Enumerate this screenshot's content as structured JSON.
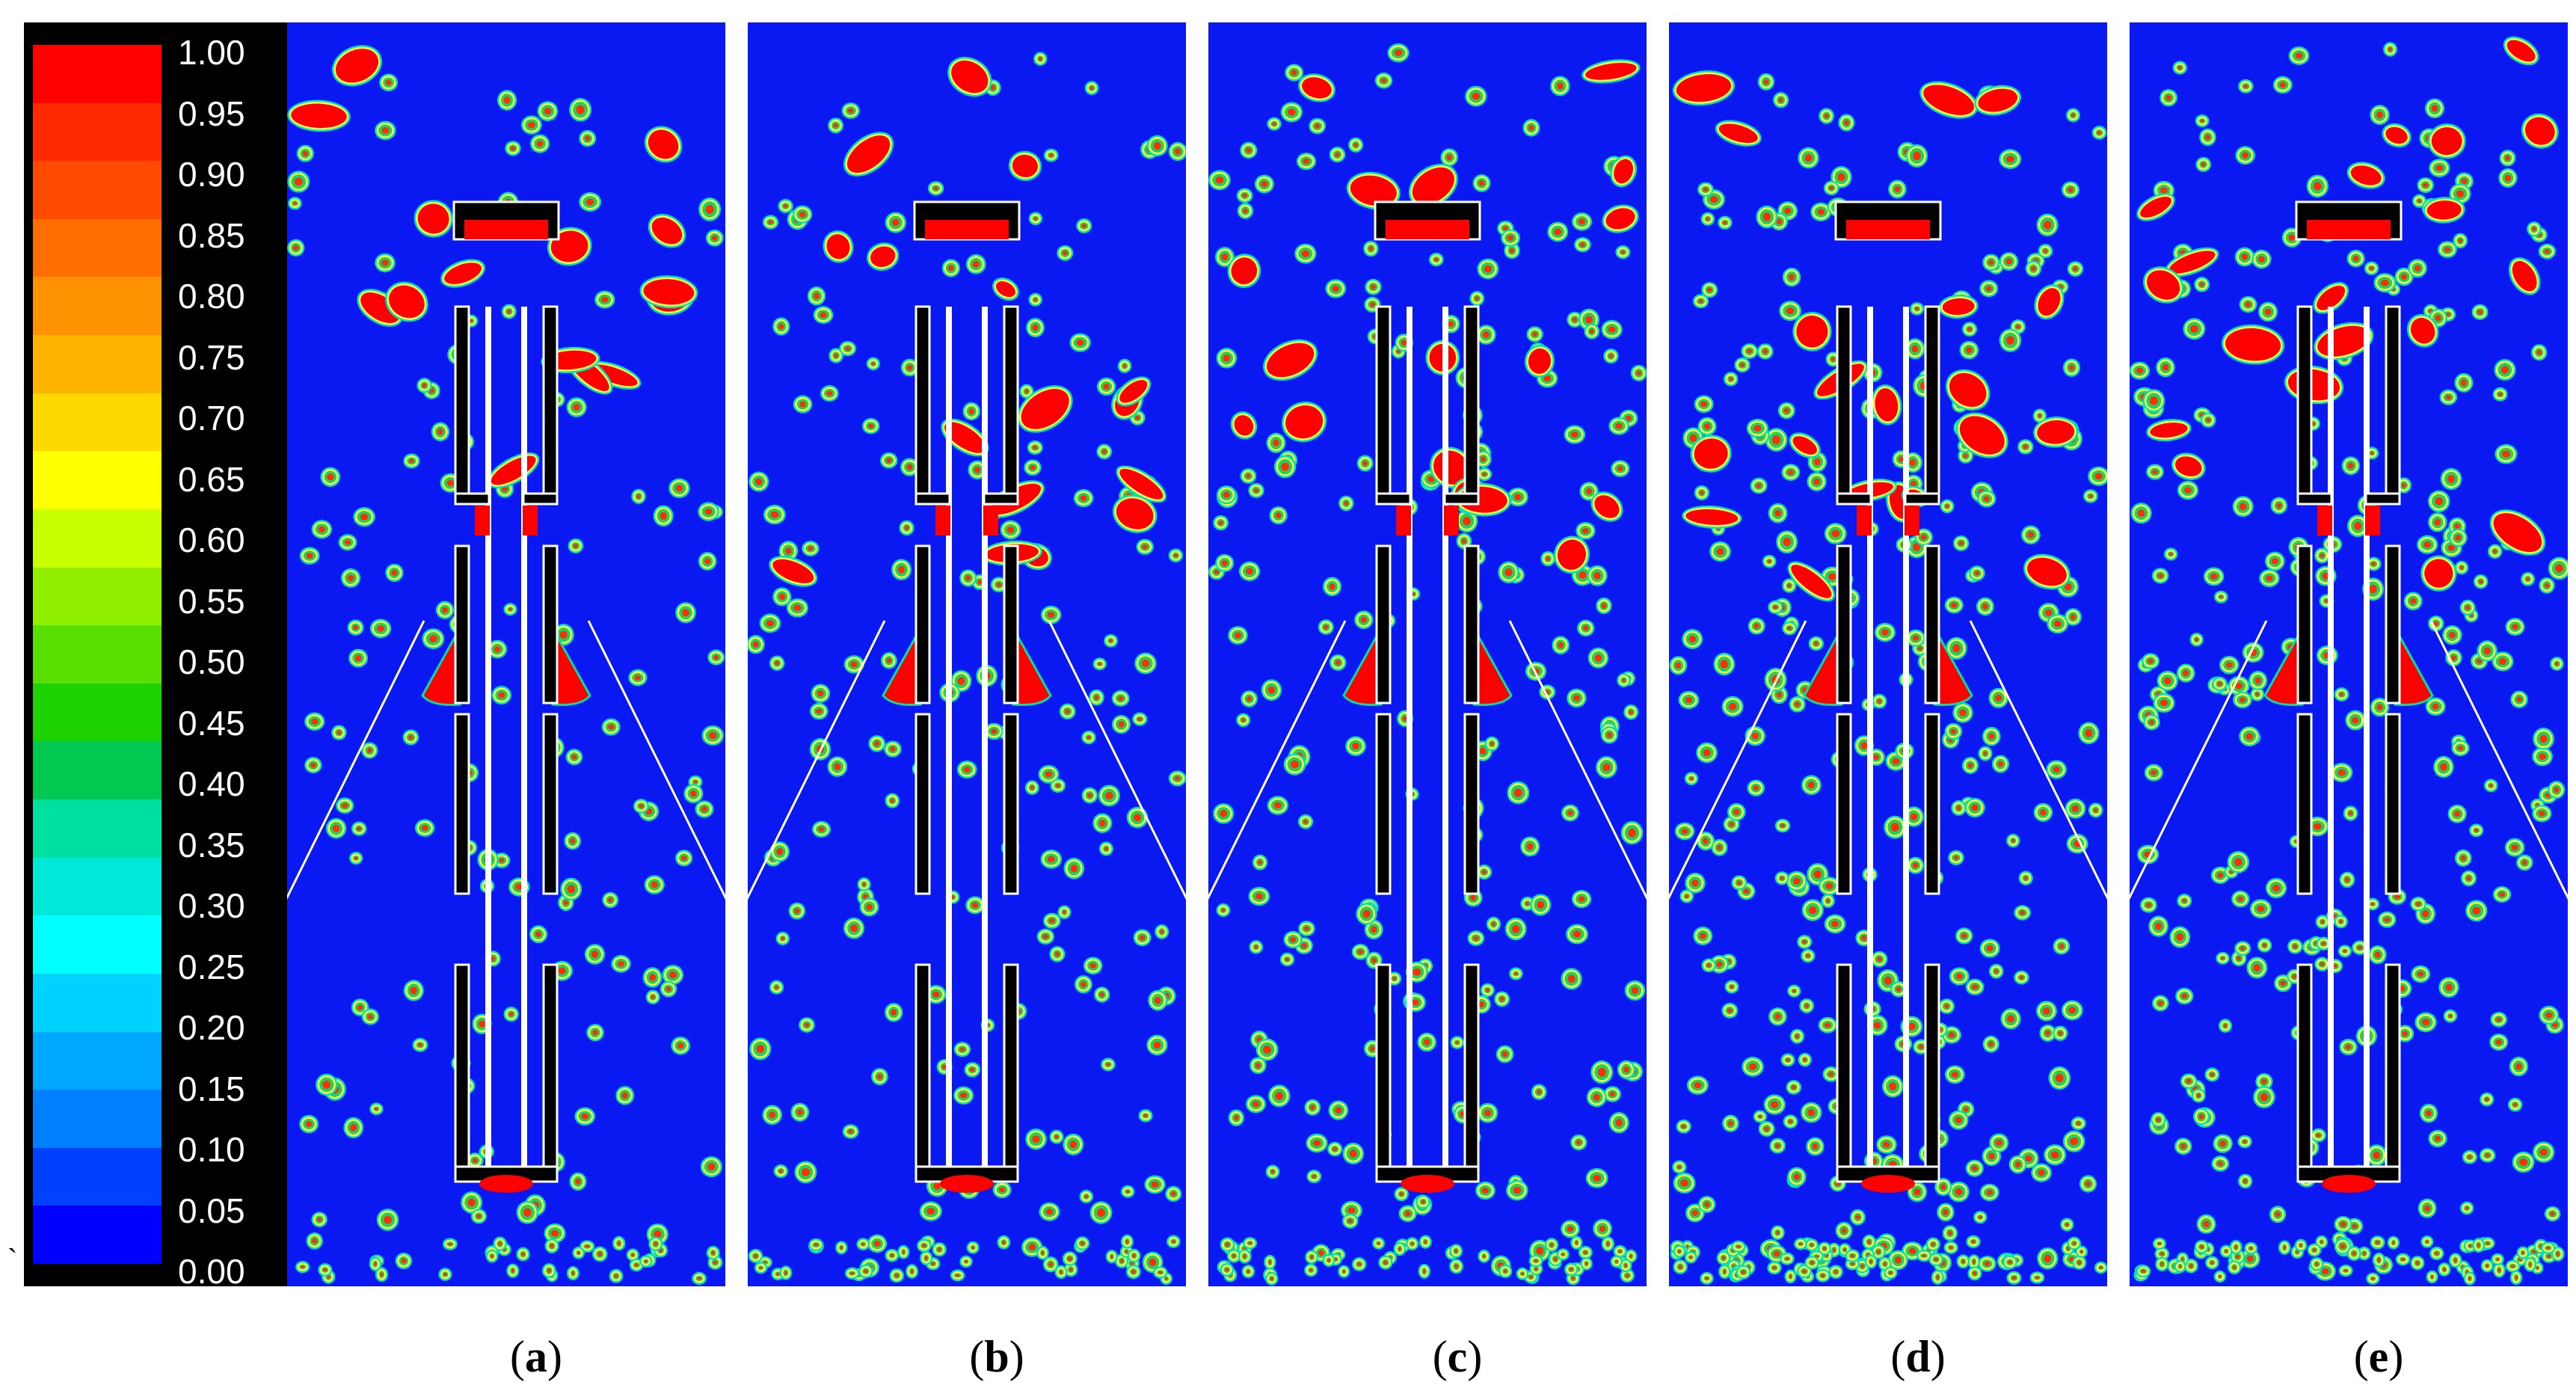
{
  "colormap": {
    "ticks": [
      "1.00",
      "0.95",
      "0.90",
      "0.85",
      "0.80",
      "0.75",
      "0.70",
      "0.65",
      "0.60",
      "0.55",
      "0.50",
      "0.45",
      "0.40",
      "0.35",
      "0.30",
      "0.25",
      "0.20",
      "0.15",
      "0.10",
      "0.05",
      "0.00"
    ],
    "colors": [
      "#ff0000",
      "#ff2a00",
      "#ff4a00",
      "#ff6e00",
      "#ff9200",
      "#ffb400",
      "#ffd800",
      "#ffff00",
      "#c8ff00",
      "#90f000",
      "#5ae000",
      "#1ed200",
      "#00c850",
      "#00e0a0",
      "#00e8d8",
      "#00ffff",
      "#00d2ff",
      "#00a8ff",
      "#0080ff",
      "#0040ff",
      "#0000ff"
    ]
  },
  "background_color": "#0a18f2",
  "droplet_color": "#ff0000",
  "panels": [
    {
      "id": "a",
      "caption_open": "(",
      "caption_letter": "a",
      "caption_close": ")",
      "density": 0.8,
      "seed": 11
    },
    {
      "id": "b",
      "caption_open": "(",
      "caption_letter": "b",
      "caption_close": ")",
      "density": 1.0,
      "seed": 23
    },
    {
      "id": "c",
      "caption_open": "(",
      "caption_letter": "c",
      "caption_close": ")",
      "density": 1.3,
      "seed": 37
    },
    {
      "id": "d",
      "caption_open": "(",
      "caption_letter": "d",
      "caption_close": ")",
      "density": 1.8,
      "seed": 41
    },
    {
      "id": "e",
      "caption_open": "(",
      "caption_letter": "e",
      "caption_close": ")",
      "density": 1.6,
      "seed": 59
    }
  ]
}
